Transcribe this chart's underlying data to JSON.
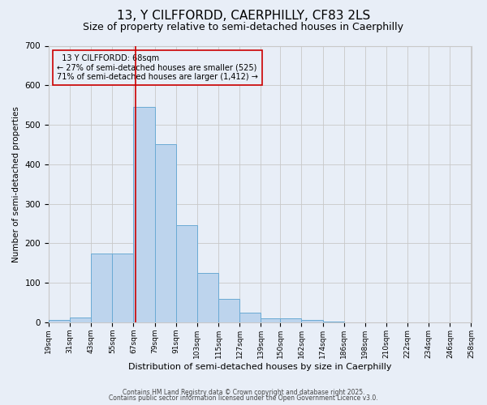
{
  "title": "13, Y CILFFORDD, CAERPHILLY, CF83 2LS",
  "subtitle": "Size of property relative to semi-detached houses in Caerphilly",
  "xlabel": "Distribution of semi-detached houses by size in Caerphilly",
  "ylabel": "Number of semi-detached properties",
  "footnote1": "Contains HM Land Registry data © Crown copyright and database right 2025.",
  "footnote2": "Contains public sector information licensed under the Open Government Licence v3.0.",
  "bin_labels": [
    "19sqm",
    "31sqm",
    "43sqm",
    "55sqm",
    "67sqm",
    "79sqm",
    "91sqm",
    "103sqm",
    "115sqm",
    "127sqm",
    "139sqm",
    "150sqm",
    "162sqm",
    "174sqm",
    "186sqm",
    "198sqm",
    "210sqm",
    "222sqm",
    "234sqm",
    "246sqm",
    "258sqm"
  ],
  "bin_edges": [
    19,
    31,
    43,
    55,
    67,
    79,
    91,
    103,
    115,
    127,
    139,
    150,
    162,
    174,
    186,
    198,
    210,
    222,
    234,
    246,
    258
  ],
  "bar_heights": [
    5,
    12,
    175,
    175,
    545,
    450,
    245,
    125,
    60,
    25,
    10,
    10,
    5,
    2,
    0,
    0,
    0,
    0,
    0,
    0
  ],
  "bar_color": "#bdd4ed",
  "bar_edgecolor": "#6aaad4",
  "property_size": 68,
  "property_label": "13 Y CILFFORDD: 68sqm",
  "pct_smaller": 27,
  "pct_smaller_count": 525,
  "pct_larger": 71,
  "pct_larger_count": 1412,
  "vline_color": "#cc0000",
  "annotation_box_edgecolor": "#cc0000",
  "ylim": [
    0,
    700
  ],
  "yticks": [
    0,
    100,
    200,
    300,
    400,
    500,
    600,
    700
  ],
  "bg_color": "#e8eef7",
  "grid_color": "#c8c8c8",
  "title_fontsize": 11,
  "subtitle_fontsize": 9
}
